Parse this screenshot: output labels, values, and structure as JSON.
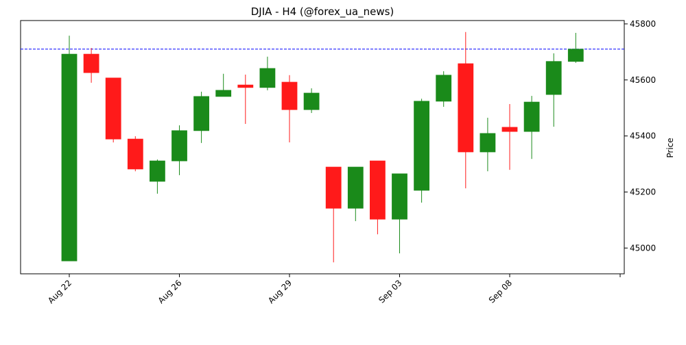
{
  "chart_data": {
    "type": "candlestick",
    "title": "DJIA - H4 (@forex_ua_news)",
    "ylabel": "Price",
    "categories": [
      "Aug 22",
      null,
      null,
      null,
      null,
      "Aug 26",
      null,
      null,
      null,
      null,
      "Aug 29",
      null,
      null,
      null,
      null,
      "Sep 03",
      null,
      null,
      null,
      null,
      "Sep 08",
      null,
      null,
      null
    ],
    "open": [
      44954,
      45692,
      45607,
      45389,
      45238,
      45311,
      45419,
      45541,
      45582,
      45573,
      45592,
      45494,
      45289,
      45142,
      45311,
      45103,
      45206,
      45524,
      45658,
      45343,
      45431,
      45416,
      45548,
      45666
    ],
    "high": [
      45758,
      45714,
      45607,
      45399,
      45316,
      45438,
      45558,
      45622,
      45619,
      45683,
      45617,
      45570,
      45289,
      45289,
      45311,
      45265,
      45533,
      45631,
      45771,
      45465,
      45514,
      45543,
      45695,
      45768
    ],
    "low": [
      44954,
      45590,
      45377,
      45274,
      45194,
      45260,
      45375,
      45541,
      45443,
      45563,
      45377,
      45482,
      44949,
      45096,
      45049,
      44981,
      45162,
      45504,
      45213,
      45274,
      45279,
      45318,
      45433,
      45661
    ],
    "close": [
      45692,
      45626,
      45389,
      45282,
      45311,
      45419,
      45541,
      45563,
      45573,
      45641,
      45494,
      45553,
      45142,
      45289,
      45103,
      45265,
      45524,
      45617,
      45343,
      45409,
      45416,
      45521,
      45666,
      45710
    ],
    "up_color": "#1a8a1a",
    "down_color": "#ff1a1a",
    "hline": {
      "value": 45710,
      "color": "#0000ff"
    },
    "ylim": [
      44908,
      45812
    ],
    "yticks": [
      45000,
      45200,
      45400,
      45600,
      45800
    ]
  }
}
